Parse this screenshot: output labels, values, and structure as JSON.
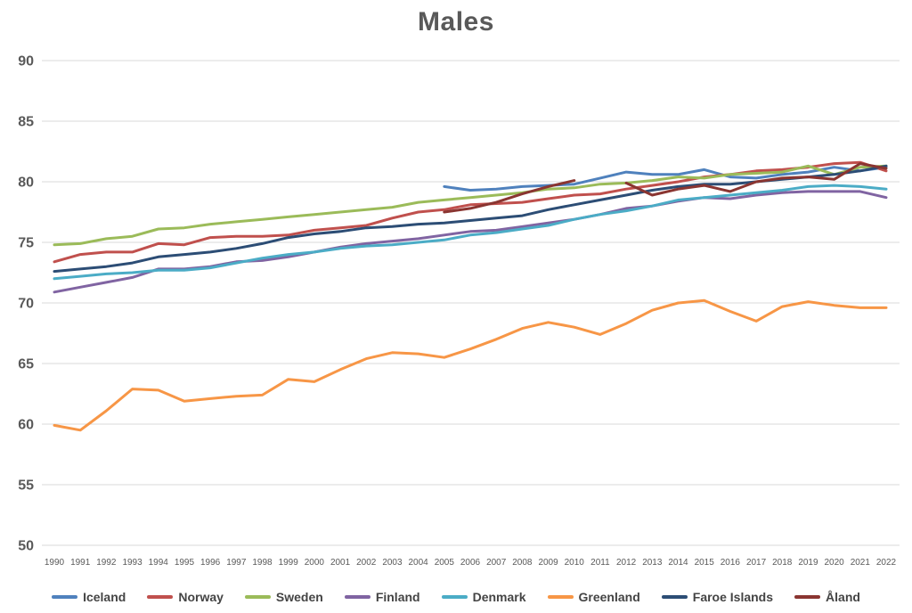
{
  "chart_data": {
    "type": "line",
    "title": "Males",
    "xlabel": "",
    "ylabel": "",
    "ylim": [
      50,
      90
    ],
    "y_ticks": [
      90,
      85,
      80,
      75,
      70,
      65,
      60,
      55,
      50
    ],
    "grid": true,
    "legend_position": "bottom",
    "x": [
      1990,
      1991,
      1992,
      1993,
      1994,
      1995,
      1996,
      1997,
      1998,
      1999,
      2000,
      2001,
      2002,
      2003,
      2004,
      2005,
      2006,
      2007,
      2008,
      2009,
      2010,
      2011,
      2012,
      2013,
      2014,
      2015,
      2016,
      2017,
      2018,
      2019,
      2020,
      2021,
      2022
    ],
    "series": [
      {
        "name": "Iceland",
        "color": "#4F81BD",
        "values": [
          null,
          null,
          null,
          null,
          null,
          null,
          null,
          null,
          null,
          null,
          null,
          null,
          null,
          null,
          null,
          79.6,
          79.3,
          79.4,
          79.6,
          79.7,
          79.8,
          80.3,
          80.8,
          80.6,
          80.6,
          81.0,
          80.4,
          80.3,
          80.6,
          80.8,
          81.2,
          80.9,
          81.2
        ]
      },
      {
        "name": "Norway",
        "color": "#C0504D",
        "values": [
          73.4,
          74.0,
          74.2,
          74.2,
          74.9,
          74.8,
          75.4,
          75.5,
          75.5,
          75.6,
          76.0,
          76.2,
          76.4,
          77.0,
          77.5,
          77.7,
          78.1,
          78.2,
          78.3,
          78.6,
          78.9,
          79.0,
          79.4,
          79.7,
          80.0,
          80.4,
          80.6,
          80.9,
          81.0,
          81.2,
          81.5,
          81.6,
          80.9
        ]
      },
      {
        "name": "Sweden",
        "color": "#9BBB59",
        "values": [
          74.8,
          74.9,
          75.3,
          75.5,
          76.1,
          76.2,
          76.5,
          76.7,
          76.9,
          77.1,
          77.3,
          77.5,
          77.7,
          77.9,
          78.3,
          78.5,
          78.7,
          78.9,
          79.1,
          79.4,
          79.5,
          79.8,
          79.9,
          80.1,
          80.4,
          80.3,
          80.6,
          80.7,
          80.8,
          81.3,
          80.6,
          81.2,
          81.3
        ]
      },
      {
        "name": "Finland",
        "color": "#8064A2",
        "values": [
          70.9,
          71.3,
          71.7,
          72.1,
          72.8,
          72.8,
          73.0,
          73.4,
          73.5,
          73.8,
          74.2,
          74.6,
          74.9,
          75.1,
          75.3,
          75.6,
          75.9,
          76.0,
          76.3,
          76.6,
          76.9,
          77.3,
          77.8,
          78.0,
          78.4,
          78.7,
          78.6,
          78.9,
          79.1,
          79.2,
          79.2,
          79.2,
          78.7
        ]
      },
      {
        "name": "Denmark",
        "color": "#4BACC6",
        "values": [
          72.0,
          72.2,
          72.4,
          72.5,
          72.7,
          72.7,
          72.9,
          73.3,
          73.7,
          74.0,
          74.2,
          74.5,
          74.7,
          74.8,
          75.0,
          75.2,
          75.6,
          75.8,
          76.1,
          76.4,
          76.9,
          77.3,
          77.6,
          78.0,
          78.5,
          78.7,
          78.9,
          79.1,
          79.3,
          79.6,
          79.7,
          79.6,
          79.4
        ]
      },
      {
        "name": "Greenland",
        "color": "#F79646",
        "values": [
          59.9,
          59.5,
          61.1,
          62.9,
          62.8,
          61.9,
          62.1,
          62.3,
          62.4,
          63.7,
          63.5,
          64.5,
          65.4,
          65.9,
          65.8,
          65.5,
          66.2,
          67.0,
          67.9,
          68.4,
          68.0,
          67.4,
          68.3,
          69.4,
          70.0,
          70.2,
          69.3,
          68.5,
          69.7,
          70.1,
          69.8,
          69.6,
          69.6
        ]
      },
      {
        "name": "Faroe Islands",
        "color": "#2C4D75",
        "values": [
          72.6,
          72.8,
          73.0,
          73.3,
          73.8,
          74.0,
          74.2,
          74.5,
          74.9,
          75.4,
          75.7,
          75.9,
          76.2,
          76.3,
          76.5,
          76.6,
          76.8,
          77.0,
          77.2,
          77.7,
          78.1,
          78.5,
          78.9,
          79.3,
          79.6,
          79.8,
          79.8,
          80.0,
          80.2,
          80.4,
          80.6,
          80.9,
          81.3
        ]
      },
      {
        "name": "Åland",
        "color": "#8A3531",
        "values": [
          null,
          null,
          null,
          null,
          null,
          null,
          null,
          null,
          null,
          null,
          null,
          null,
          null,
          null,
          null,
          77.5,
          77.8,
          78.3,
          79.0,
          79.6,
          80.1,
          null,
          79.9,
          78.9,
          79.4,
          79.7,
          79.2,
          80.0,
          80.3,
          80.4,
          80.2,
          81.5,
          81.1
        ]
      }
    ]
  },
  "style": {
    "background": "#FFFFFF",
    "gridline_color": "#D9D9D9",
    "title_color": "#595959",
    "tick_label_color": "#595959",
    "legend_text_color": "#444444",
    "line_width": 3
  }
}
